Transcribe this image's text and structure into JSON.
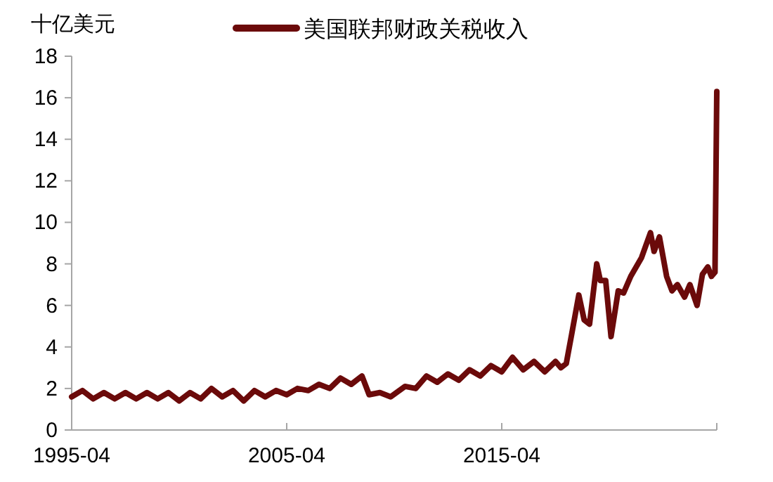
{
  "chart_data": {
    "type": "line",
    "ylabel": "十亿美元",
    "legend": "top",
    "grid": false,
    "xlim": [
      "1995-04",
      "2025-04"
    ],
    "xticks": [
      {
        "value": "1995-04",
        "label": "1995-04"
      },
      {
        "value": "2005-04",
        "label": "2005-04"
      },
      {
        "value": "2015-04",
        "label": "2015-04"
      },
      {
        "value": "2025-04",
        "label": null
      }
    ],
    "ylim": [
      0,
      18
    ],
    "yticks": [
      0,
      2,
      4,
      6,
      8,
      10,
      12,
      14,
      16,
      18
    ],
    "x": [
      "1995-04",
      "1995-10",
      "1996-04",
      "1996-10",
      "1997-04",
      "1997-10",
      "1998-04",
      "1998-10",
      "1999-04",
      "1999-10",
      "2000-04",
      "2000-10",
      "2001-04",
      "2001-10",
      "2002-04",
      "2002-10",
      "2003-04",
      "2003-10",
      "2004-04",
      "2004-10",
      "2005-04",
      "2005-10",
      "2006-04",
      "2006-10",
      "2007-04",
      "2007-10",
      "2008-04",
      "2008-10",
      "2009-02",
      "2009-08",
      "2010-02",
      "2010-10",
      "2011-04",
      "2011-10",
      "2012-04",
      "2012-10",
      "2013-04",
      "2013-10",
      "2014-04",
      "2014-10",
      "2015-04",
      "2015-10",
      "2016-04",
      "2016-10",
      "2017-04",
      "2017-10",
      "2018-01",
      "2018-04",
      "2018-07",
      "2018-11",
      "2019-02",
      "2019-05",
      "2019-09",
      "2019-11",
      "2020-02",
      "2020-05",
      "2020-09",
      "2020-12",
      "2021-04",
      "2021-10",
      "2022-03",
      "2022-05",
      "2022-08",
      "2022-12",
      "2023-03",
      "2023-06",
      "2023-10",
      "2024-01",
      "2024-05",
      "2024-08",
      "2024-11",
      "2025-01",
      "2025-03",
      "2025-04"
    ],
    "series": [
      {
        "name": "美国联邦财政关税收入",
        "color": "#6b0a0a",
        "values": [
          1.6,
          1.9,
          1.5,
          1.8,
          1.5,
          1.8,
          1.5,
          1.8,
          1.5,
          1.8,
          1.4,
          1.8,
          1.5,
          2.0,
          1.6,
          1.9,
          1.4,
          1.9,
          1.6,
          1.9,
          1.7,
          2.0,
          1.9,
          2.2,
          2.0,
          2.5,
          2.2,
          2.6,
          1.7,
          1.8,
          1.6,
          2.1,
          2.0,
          2.6,
          2.3,
          2.7,
          2.4,
          2.9,
          2.6,
          3.1,
          2.8,
          3.5,
          2.9,
          3.3,
          2.8,
          3.3,
          3.0,
          3.2,
          4.6,
          6.5,
          5.3,
          5.1,
          8.0,
          7.2,
          7.2,
          4.5,
          6.7,
          6.6,
          7.4,
          8.3,
          9.5,
          8.6,
          9.3,
          7.4,
          6.7,
          7.0,
          6.4,
          7.0,
          6.0,
          7.5,
          7.85,
          7.4,
          7.6,
          16.3
        ]
      }
    ]
  }
}
